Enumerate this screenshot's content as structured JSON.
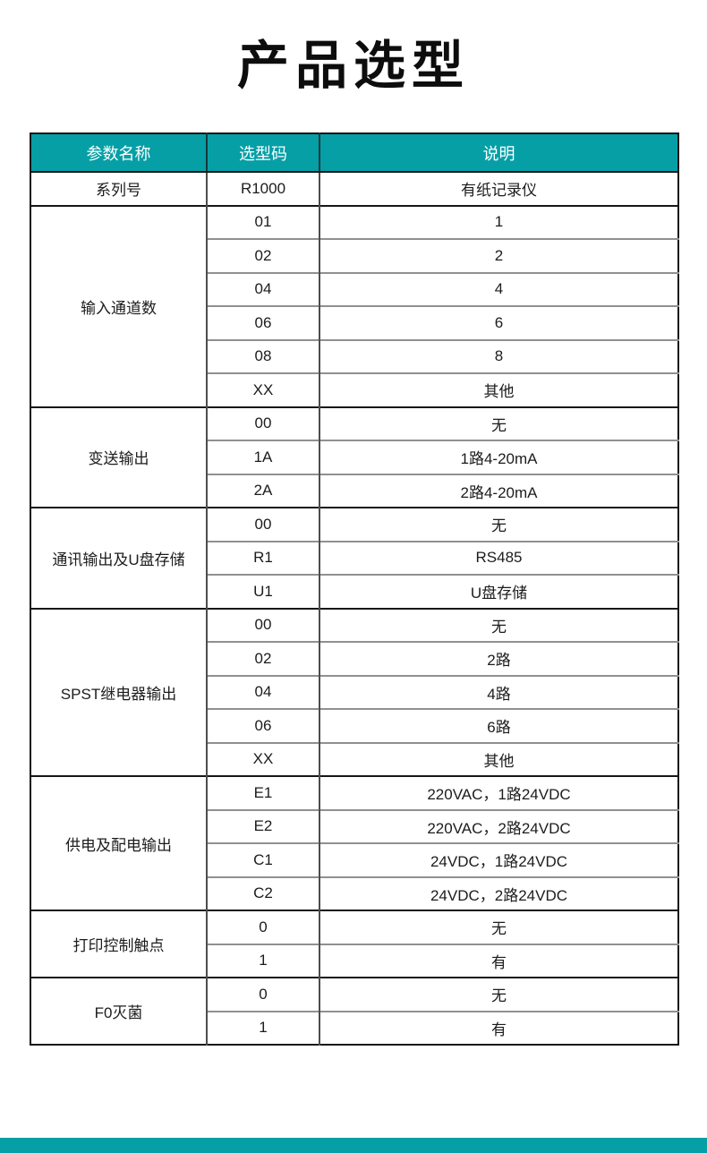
{
  "page": {
    "title": "产品选型",
    "accent_color": "#069fa6",
    "background_color": "#ffffff",
    "header_text_color": "#ffffff"
  },
  "table": {
    "headers": [
      "参数名称",
      "选型码",
      "说明"
    ],
    "groups": [
      {
        "name": "系列号",
        "rows": [
          {
            "code": "R1000",
            "desc": "有纸记录仪"
          }
        ]
      },
      {
        "name": "输入通道数",
        "rows": [
          {
            "code": "01",
            "desc": "1"
          },
          {
            "code": "02",
            "desc": "2"
          },
          {
            "code": "04",
            "desc": "4"
          },
          {
            "code": "06",
            "desc": "6"
          },
          {
            "code": "08",
            "desc": "8"
          },
          {
            "code": "XX",
            "desc": "其他"
          }
        ]
      },
      {
        "name": "变送输出",
        "rows": [
          {
            "code": "00",
            "desc": "无"
          },
          {
            "code": "1A",
            "desc": "1路4-20mA"
          },
          {
            "code": "2A",
            "desc": "2路4-20mA"
          }
        ]
      },
      {
        "name": "通讯输出及U盘存储",
        "rows": [
          {
            "code": "00",
            "desc": "无"
          },
          {
            "code": "R1",
            "desc": "RS485"
          },
          {
            "code": "U1",
            "desc": "U盘存储"
          }
        ]
      },
      {
        "name": "SPST继电器输出",
        "rows": [
          {
            "code": "00",
            "desc": "无"
          },
          {
            "code": "02",
            "desc": "2路"
          },
          {
            "code": "04",
            "desc": "4路"
          },
          {
            "code": "06",
            "desc": "6路"
          },
          {
            "code": "XX",
            "desc": "其他"
          }
        ]
      },
      {
        "name": "供电及配电输出",
        "rows": [
          {
            "code": "E1",
            "desc": "220VAC，1路24VDC"
          },
          {
            "code": "E2",
            "desc": "220VAC，2路24VDC"
          },
          {
            "code": "C1",
            "desc": "24VDC，1路24VDC"
          },
          {
            "code": "C2",
            "desc": "24VDC，2路24VDC"
          }
        ]
      },
      {
        "name": "打印控制触点",
        "rows": [
          {
            "code": "0",
            "desc": "无"
          },
          {
            "code": "1",
            "desc": "有"
          }
        ]
      },
      {
        "name": "F0灭菌",
        "rows": [
          {
            "code": "0",
            "desc": "无"
          },
          {
            "code": "1",
            "desc": "有"
          }
        ]
      }
    ]
  }
}
